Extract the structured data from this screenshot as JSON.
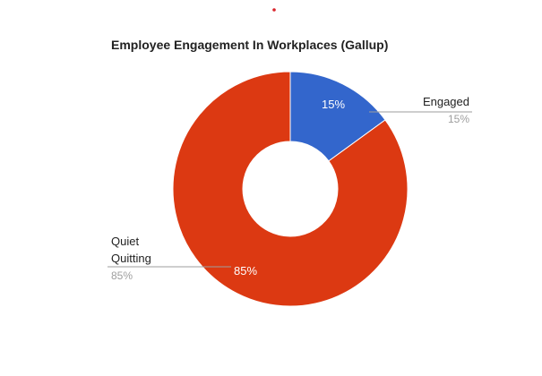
{
  "chart_data": {
    "type": "pie",
    "donut": true,
    "title": "Employee Engagement In Workplaces (Gallup)",
    "slices": [
      {
        "label": "Engaged",
        "value": 15,
        "display": "15%",
        "color": "#3366cc",
        "legend_lines": [
          "Engaged"
        ],
        "legend_value": "15%"
      },
      {
        "label": "Quiet Quitting",
        "value": 85,
        "display": "85%",
        "color": "#dc3912",
        "legend_lines": [
          "Quiet",
          "Quitting"
        ],
        "legend_value": "85%"
      }
    ],
    "legend_placement": "labeled"
  }
}
